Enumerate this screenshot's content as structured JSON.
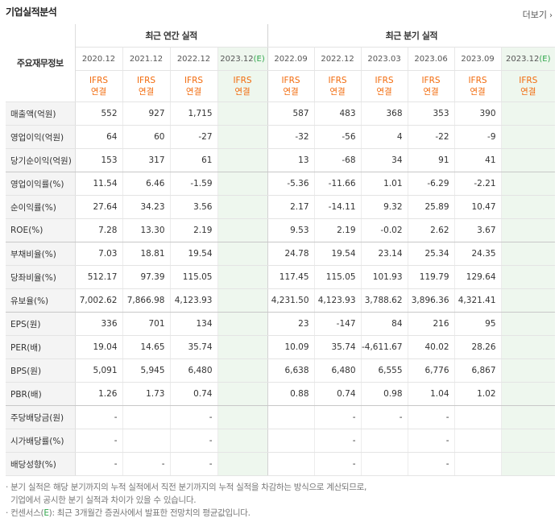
{
  "header": {
    "title": "기업실적분석",
    "more_label": "더보기"
  },
  "table": {
    "corner_label": "주요재무정보",
    "annual_group": "최근 연간 실적",
    "quarter_group": "최근 분기 실적",
    "annual_periods": [
      "2020.12",
      "2021.12",
      "2022.12",
      "2023.12"
    ],
    "quarter_periods": [
      "2022.09",
      "2022.12",
      "2023.03",
      "2023.06",
      "2023.09",
      "2023.12"
    ],
    "estimate_marker": "(E)",
    "basis_line1": "IFRS",
    "basis_line2": "연결",
    "rows": [
      {
        "label": "매출액(억원)",
        "annual": [
          "552",
          "927",
          "1,715",
          ""
        ],
        "quarter": [
          "587",
          "483",
          "368",
          "353",
          "390",
          ""
        ]
      },
      {
        "label": "영업이익(억원)",
        "annual": [
          "64",
          "60",
          "-27",
          ""
        ],
        "quarter": [
          "-32",
          "-56",
          "4",
          "-22",
          "-9",
          ""
        ]
      },
      {
        "label": "당기순이익(억원)",
        "annual": [
          "153",
          "317",
          "61",
          ""
        ],
        "quarter": [
          "13",
          "-68",
          "34",
          "91",
          "41",
          ""
        ]
      },
      {
        "label": "영업이익률(%)",
        "annual": [
          "11.54",
          "6.46",
          "-1.59",
          ""
        ],
        "quarter": [
          "-5.36",
          "-11.66",
          "1.01",
          "-6.29",
          "-2.21",
          ""
        ]
      },
      {
        "label": "순이익률(%)",
        "annual": [
          "27.64",
          "34.23",
          "3.56",
          ""
        ],
        "quarter": [
          "2.17",
          "-14.11",
          "9.32",
          "25.89",
          "10.47",
          ""
        ]
      },
      {
        "label": "ROE(%)",
        "annual": [
          "7.28",
          "13.30",
          "2.19",
          ""
        ],
        "quarter": [
          "9.53",
          "2.19",
          "-0.02",
          "2.62",
          "3.67",
          ""
        ]
      },
      {
        "label": "부채비율(%)",
        "annual": [
          "7.03",
          "18.81",
          "19.54",
          ""
        ],
        "quarter": [
          "24.78",
          "19.54",
          "23.14",
          "25.34",
          "24.35",
          ""
        ]
      },
      {
        "label": "당좌비율(%)",
        "annual": [
          "512.17",
          "97.39",
          "115.05",
          ""
        ],
        "quarter": [
          "117.45",
          "115.05",
          "101.93",
          "119.79",
          "129.64",
          ""
        ]
      },
      {
        "label": "유보율(%)",
        "annual": [
          "7,002.62",
          "7,866.98",
          "4,123.93",
          ""
        ],
        "quarter": [
          "4,231.50",
          "4,123.93",
          "3,788.62",
          "3,896.36",
          "4,321.41",
          ""
        ]
      },
      {
        "label": "EPS(원)",
        "annual": [
          "336",
          "701",
          "134",
          ""
        ],
        "quarter": [
          "23",
          "-147",
          "84",
          "216",
          "95",
          ""
        ]
      },
      {
        "label": "PER(배)",
        "annual": [
          "19.04",
          "14.65",
          "35.74",
          ""
        ],
        "quarter": [
          "10.09",
          "35.74",
          "-4,611.67",
          "40.02",
          "28.26",
          ""
        ]
      },
      {
        "label": "BPS(원)",
        "annual": [
          "5,091",
          "5,945",
          "6,480",
          ""
        ],
        "quarter": [
          "6,638",
          "6,480",
          "6,555",
          "6,776",
          "6,867",
          ""
        ]
      },
      {
        "label": "PBR(배)",
        "annual": [
          "1.26",
          "1.73",
          "0.74",
          ""
        ],
        "quarter": [
          "0.88",
          "0.74",
          "0.98",
          "1.04",
          "1.02",
          ""
        ]
      },
      {
        "label": "주당배당금(원)",
        "annual": [
          "-",
          "",
          "-",
          ""
        ],
        "quarter": [
          "",
          "-",
          "-",
          "-",
          "",
          ""
        ]
      },
      {
        "label": "시가배당률(%)",
        "annual": [
          "-",
          "",
          "-",
          ""
        ],
        "quarter": [
          "",
          "-",
          "",
          "-",
          "",
          ""
        ]
      },
      {
        "label": "배당성향(%)",
        "annual": [
          "-",
          "-",
          "-",
          ""
        ],
        "quarter": [
          "",
          "-",
          "",
          "-",
          "",
          ""
        ]
      }
    ]
  },
  "notes": {
    "line1": "· 분기 실적은 해당 분기까지의 누적 실적에서 직전 분기까지의 누적 실적을 차감하는 방식으로 계산되므로,",
    "line2": "  기업에서 공시한 분기 실적과 차이가 있을 수 있습니다.",
    "line3_prefix": "· 컨센서스(",
    "line3_marker": "E",
    "line3_suffix": "): 최근 3개월간 증권사에서 발표한 전망치의 평균값입니다."
  }
}
